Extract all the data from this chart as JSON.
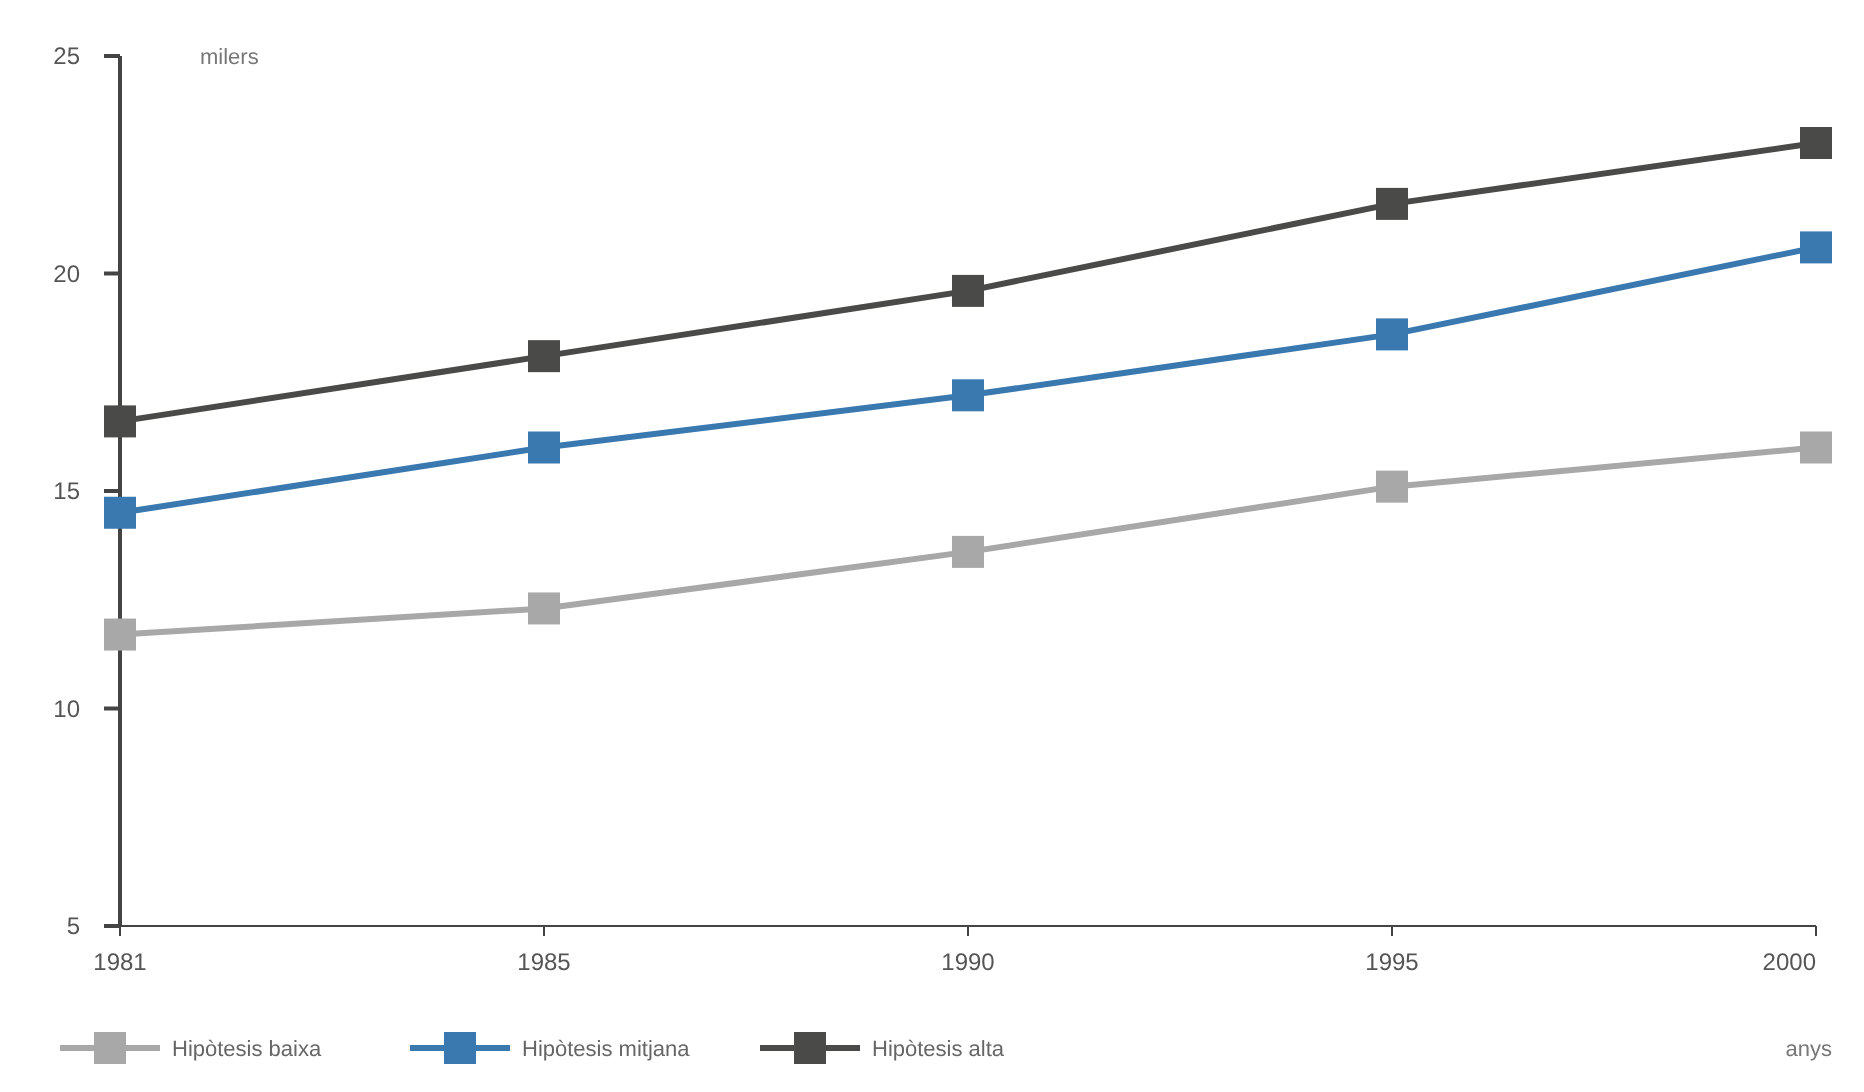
{
  "chart_data": {
    "type": "line",
    "xlabel": "anys",
    "ylabel": "milers",
    "categories": [
      "1981",
      "1985",
      "1990",
      "1995",
      "2000"
    ],
    "series": [
      {
        "name": "Hipòtesis baixa",
        "color": "#a8a8a8",
        "values": [
          11.7,
          12.3,
          13.6,
          15.1,
          16.0
        ]
      },
      {
        "name": "Hipòtesis mitjana",
        "color": "#3a78b0",
        "values": [
          14.5,
          16.0,
          17.2,
          18.6,
          20.6
        ]
      },
      {
        "name": "Hipòtesis alta",
        "color": "#4a4a48",
        "values": [
          16.6,
          18.1,
          19.6,
          21.6,
          23.0
        ]
      }
    ],
    "ylim": [
      5,
      25
    ],
    "yticks": [
      5,
      10,
      15,
      20,
      25
    ],
    "grid": false,
    "legend": "bottom",
    "marker": "square",
    "line_style": "solid"
  }
}
